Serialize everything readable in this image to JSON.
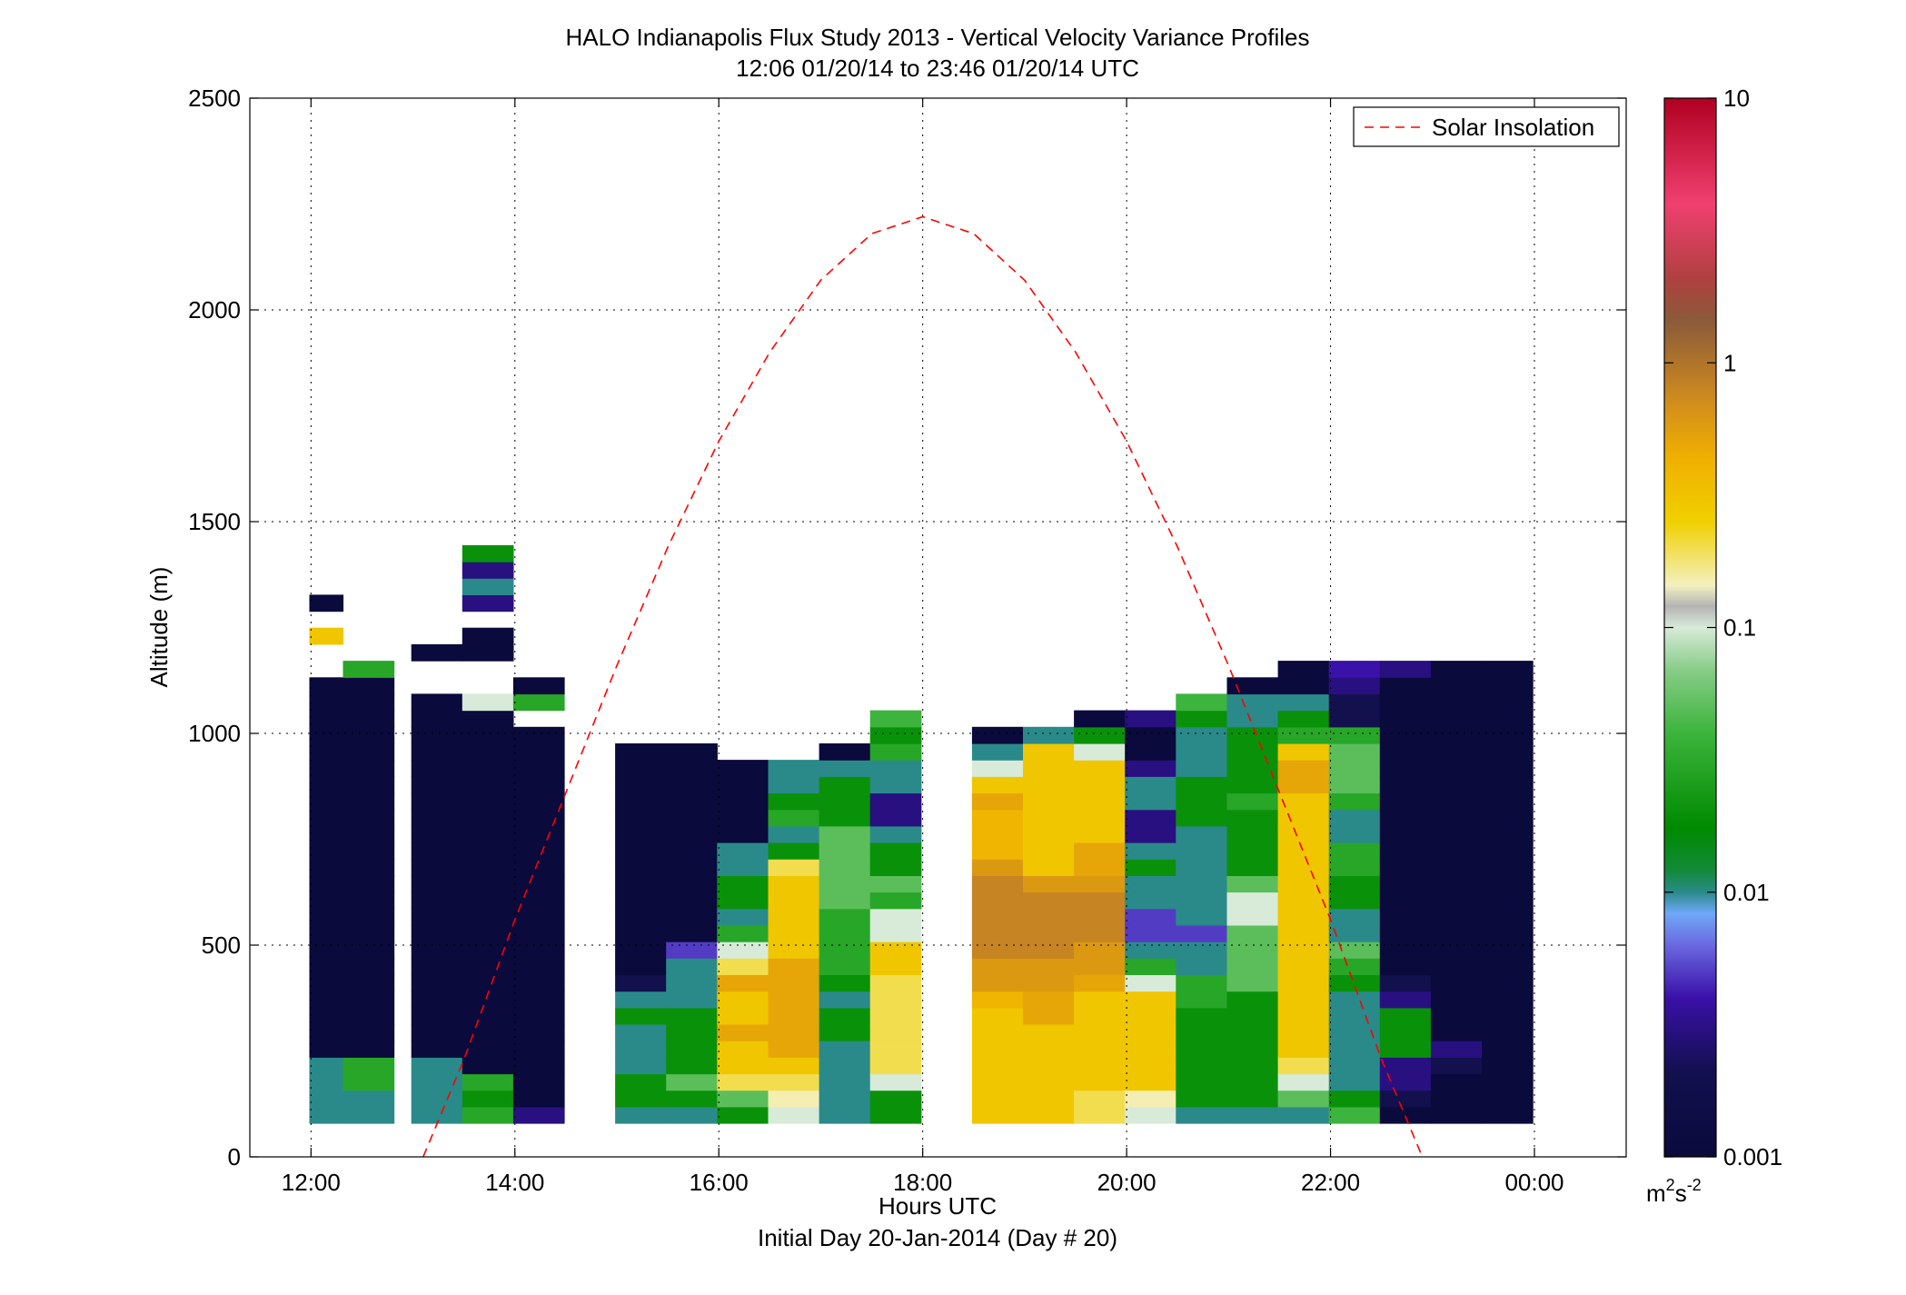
{
  "chart_data": {
    "type": "heatmap",
    "title": "HALO Indianapolis Flux Study 2013 - Vertical Velocity Variance Profiles",
    "subtitle": "12:06 01/20/14 to 23:46 01/20/14  UTC",
    "xlabel": "Hours UTC",
    "xlabel2": "Initial Day 20-Jan-2014 (Day # 20)",
    "ylabel": "Altitude (m)",
    "xlim": [
      11.4,
      24.9
    ],
    "ylim": [
      0,
      2500
    ],
    "x_ticks": [
      12,
      14,
      16,
      18,
      20,
      22,
      24
    ],
    "x_tick_labels": [
      "12:00",
      "14:00",
      "16:00",
      "18:00",
      "20:00",
      "22:00",
      "00:00"
    ],
    "y_ticks": [
      0,
      500,
      1000,
      1500,
      2000,
      2500
    ],
    "y_tick_labels": [
      "0",
      "500",
      "1000",
      "1500",
      "2000",
      "2500"
    ],
    "grid": true,
    "legend": {
      "placement": "top-right",
      "entries": [
        "Solar Insolation"
      ]
    },
    "colorbar": {
      "scale": "log",
      "min": 0.001,
      "max": 10,
      "ticks": [
        0.001,
        0.01,
        0.1,
        1,
        10
      ],
      "tick_labels": [
        "0.001",
        "0.01",
        "0.1",
        "1",
        "10"
      ],
      "unit_label": "m²s⁻²",
      "unit_parts": {
        "base1": "m",
        "sup1": "2",
        "base2": "s",
        "sup2": "-2"
      },
      "stops": [
        {
          "v": 0.0,
          "c": "#0a0a3c"
        },
        {
          "v": 0.08,
          "c": "#12104e"
        },
        {
          "v": 0.15,
          "c": "#3a10a8"
        },
        {
          "v": 0.2,
          "c": "#6a68e0"
        },
        {
          "v": 0.23,
          "c": "#70a8f8"
        },
        {
          "v": 0.25,
          "c": "#2a8a8a"
        },
        {
          "v": 0.27,
          "c": "#128a3a"
        },
        {
          "v": 0.31,
          "c": "#008a00"
        },
        {
          "v": 0.4,
          "c": "#3cb43c"
        },
        {
          "v": 0.46,
          "c": "#88cc88"
        },
        {
          "v": 0.5,
          "c": "#d8ead8"
        },
        {
          "v": 0.52,
          "c": "#b4b4b4"
        },
        {
          "v": 0.54,
          "c": "#f4f0c0"
        },
        {
          "v": 0.6,
          "c": "#f0d000"
        },
        {
          "v": 0.66,
          "c": "#f0b000"
        },
        {
          "v": 0.72,
          "c": "#cc8820"
        },
        {
          "v": 0.79,
          "c": "#8a5a3a"
        },
        {
          "v": 0.83,
          "c": "#b04040"
        },
        {
          "v": 0.9,
          "c": "#f04070"
        },
        {
          "v": 1.0,
          "c": "#b00020"
        }
      ]
    },
    "time_bin_hours": 0.1667,
    "altitude_bin_m": 39,
    "altitude_bin_centers_m": [
      99,
      138,
      177,
      216,
      255,
      294,
      333,
      372,
      411,
      450,
      489,
      528,
      567,
      606,
      645,
      684,
      723,
      762,
      801,
      840,
      879,
      918,
      957,
      996,
      1035,
      1074,
      1113,
      1152,
      1191,
      1230,
      1269,
      1308,
      1347,
      1386,
      1425
    ],
    "profiles": [
      {
        "t": 12.15,
        "variance_m2s2": [
          0.01,
          0.01,
          0.01,
          0.01,
          0.001,
          0.001,
          0.001,
          0.001,
          0.001,
          0.001,
          0.001,
          0.001,
          0.001,
          0.001,
          0.001,
          0.001,
          0.001,
          0.001,
          0.001,
          0.001,
          0.001,
          0.001,
          0.001,
          0.001,
          0.001,
          0.001,
          0.001,
          null,
          null,
          0.3,
          null,
          0.001,
          null,
          null,
          null
        ]
      },
      {
        "t": 12.48,
        "variance_m2s2": [
          0.01,
          0.01,
          0.03,
          0.03,
          0.001,
          0.001,
          0.001,
          0.001,
          0.001,
          0.001,
          0.001,
          0.001,
          0.001,
          0.001,
          0.001,
          0.001,
          0.001,
          0.001,
          0.001,
          0.001,
          0.001,
          0.001,
          0.001,
          0.001,
          0.001,
          0.001,
          0.001,
          0.03,
          null,
          null,
          null,
          null,
          null,
          null,
          null
        ]
      },
      {
        "t": 13.15,
        "variance_m2s2": [
          0.01,
          0.01,
          0.01,
          0.01,
          0.001,
          0.001,
          0.001,
          0.001,
          0.001,
          0.001,
          0.001,
          0.001,
          0.001,
          0.001,
          0.001,
          0.001,
          0.001,
          0.001,
          0.001,
          0.001,
          0.001,
          0.001,
          0.001,
          0.001,
          0.001,
          0.001,
          null,
          null,
          0.001,
          null,
          null,
          null,
          null,
          null,
          null
        ]
      },
      {
        "t": 13.65,
        "variance_m2s2": [
          0.03,
          0.02,
          0.03,
          0.001,
          0.001,
          0.001,
          0.001,
          0.001,
          0.001,
          0.001,
          0.001,
          0.001,
          0.001,
          0.001,
          0.001,
          0.001,
          0.001,
          0.001,
          0.001,
          0.001,
          0.001,
          0.001,
          0.001,
          0.001,
          0.001,
          0.1,
          null,
          null,
          0.001,
          0.001,
          null,
          0.003,
          0.01,
          0.003,
          0.02
        ]
      },
      {
        "t": 14.15,
        "variance_m2s2": [
          0.003,
          0.001,
          0.001,
          0.001,
          0.001,
          0.001,
          0.001,
          0.001,
          0.001,
          0.001,
          0.001,
          0.001,
          0.001,
          0.001,
          0.001,
          0.001,
          0.001,
          0.001,
          0.001,
          0.001,
          0.001,
          0.001,
          0.001,
          0.001,
          null,
          0.03,
          0.001,
          null,
          null,
          null,
          null,
          null,
          null,
          null,
          null
        ]
      },
      {
        "t": 15.15,
        "variance_m2s2": [
          0.01,
          0.02,
          0.02,
          0.01,
          0.01,
          0.01,
          0.02,
          0.01,
          0.002,
          0.001,
          0.001,
          0.001,
          0.001,
          0.001,
          0.001,
          0.001,
          0.001,
          0.001,
          0.001,
          0.001,
          0.001,
          0.001,
          0.001,
          null,
          null,
          null,
          null,
          null,
          null,
          null,
          null,
          null,
          null,
          null,
          null
        ]
      },
      {
        "t": 15.65,
        "variance_m2s2": [
          0.01,
          0.02,
          0.05,
          0.02,
          0.02,
          0.02,
          0.02,
          0.01,
          0.01,
          0.01,
          0.005,
          0.001,
          0.001,
          0.001,
          0.001,
          0.001,
          0.001,
          0.001,
          0.001,
          0.001,
          0.001,
          0.001,
          0.001,
          null,
          null,
          null,
          null,
          null,
          null,
          null,
          null,
          null,
          null,
          null,
          null
        ]
      },
      {
        "t": 16.15,
        "variance_m2s2": [
          0.02,
          0.05,
          0.2,
          0.3,
          0.3,
          0.5,
          0.3,
          0.3,
          0.5,
          0.2,
          0.1,
          0.03,
          0.01,
          0.02,
          0.02,
          0.01,
          0.01,
          0.001,
          0.001,
          0.001,
          0.001,
          0.001,
          null,
          null,
          null,
          null,
          null,
          null,
          null,
          null,
          null,
          null,
          null,
          null,
          null
        ]
      },
      {
        "t": 16.65,
        "variance_m2s2": [
          0.1,
          0.15,
          0.2,
          0.3,
          0.5,
          0.5,
          0.5,
          0.5,
          0.5,
          0.5,
          0.3,
          0.3,
          0.3,
          0.3,
          0.3,
          0.2,
          0.02,
          0.01,
          0.03,
          0.02,
          0.01,
          0.01,
          null,
          null,
          null,
          null,
          null,
          null,
          null,
          null,
          null,
          null,
          null,
          null,
          null
        ]
      },
      {
        "t": 17.15,
        "variance_m2s2": [
          0.01,
          0.01,
          0.01,
          0.01,
          0.01,
          0.02,
          0.02,
          0.01,
          0.02,
          0.03,
          0.03,
          0.03,
          0.03,
          0.05,
          0.05,
          0.05,
          0.05,
          0.05,
          0.02,
          0.02,
          0.02,
          0.01,
          0.001,
          null,
          null,
          null,
          null,
          null,
          null,
          null,
          null,
          null,
          null,
          null,
          null
        ]
      },
      {
        "t": 17.65,
        "variance_m2s2": [
          0.02,
          0.02,
          0.1,
          0.2,
          0.2,
          0.2,
          0.2,
          0.2,
          0.2,
          0.3,
          0.3,
          0.1,
          0.1,
          0.03,
          0.05,
          0.02,
          0.02,
          0.01,
          0.003,
          0.003,
          0.01,
          0.01,
          0.03,
          0.02,
          0.04,
          null,
          null,
          null,
          null,
          null,
          null,
          null,
          null,
          null,
          null
        ]
      },
      {
        "t": 18.65,
        "variance_m2s2": [
          0.3,
          0.3,
          0.3,
          0.3,
          0.3,
          0.3,
          0.3,
          0.4,
          0.6,
          0.6,
          0.8,
          0.8,
          0.8,
          0.8,
          0.8,
          0.6,
          0.4,
          0.4,
          0.4,
          0.5,
          0.3,
          0.1,
          0.01,
          0.001,
          null,
          null,
          null,
          null,
          null,
          null,
          null,
          null,
          null,
          null,
          null
        ]
      },
      {
        "t": 19.15,
        "variance_m2s2": [
          0.3,
          0.3,
          0.3,
          0.3,
          0.3,
          0.3,
          0.5,
          0.5,
          0.6,
          0.6,
          0.8,
          0.8,
          0.8,
          0.8,
          0.6,
          0.3,
          0.3,
          0.3,
          0.3,
          0.3,
          0.3,
          0.3,
          0.3,
          0.01,
          null,
          null,
          null,
          null,
          null,
          null,
          null,
          null,
          null,
          null,
          null
        ]
      },
      {
        "t": 19.65,
        "variance_m2s2": [
          0.2,
          0.2,
          0.3,
          0.3,
          0.3,
          0.3,
          0.3,
          0.3,
          0.5,
          0.6,
          0.6,
          0.8,
          0.8,
          0.8,
          0.6,
          0.5,
          0.5,
          0.3,
          0.3,
          0.3,
          0.3,
          0.3,
          0.1,
          0.02,
          0.001,
          null,
          null,
          null,
          null,
          null,
          null,
          null,
          null,
          null,
          null
        ]
      },
      {
        "t": 20.15,
        "variance_m2s2": [
          0.1,
          0.15,
          0.3,
          0.3,
          0.3,
          0.3,
          0.3,
          0.3,
          0.1,
          0.03,
          0.01,
          0.005,
          0.005,
          0.01,
          0.01,
          0.02,
          0.01,
          0.003,
          0.003,
          0.01,
          0.01,
          0.003,
          0.001,
          0.001,
          0.003,
          null,
          null,
          null,
          null,
          null,
          null,
          null,
          null,
          null,
          null
        ]
      },
      {
        "t": 20.65,
        "variance_m2s2": [
          0.01,
          0.02,
          0.02,
          0.02,
          0.02,
          0.02,
          0.02,
          0.03,
          0.03,
          0.01,
          0.01,
          0.005,
          0.01,
          0.01,
          0.01,
          0.01,
          0.01,
          0.01,
          0.02,
          0.02,
          0.02,
          0.01,
          0.01,
          0.01,
          0.02,
          0.04,
          null,
          null,
          null,
          null,
          null,
          null,
          null,
          null,
          null
        ]
      },
      {
        "t": 21.15,
        "variance_m2s2": [
          0.01,
          0.02,
          0.02,
          0.02,
          0.02,
          0.02,
          0.02,
          0.02,
          0.05,
          0.05,
          0.05,
          0.05,
          0.1,
          0.1,
          0.05,
          0.02,
          0.02,
          0.02,
          0.02,
          0.03,
          0.02,
          0.02,
          0.02,
          0.02,
          0.01,
          0.01,
          0.001,
          null,
          null,
          null,
          null,
          null,
          null,
          null,
          null
        ]
      },
      {
        "t": 21.65,
        "variance_m2s2": [
          0.01,
          0.05,
          0.1,
          0.2,
          0.3,
          0.3,
          0.3,
          0.3,
          0.3,
          0.3,
          0.3,
          0.3,
          0.3,
          0.3,
          0.3,
          0.3,
          0.3,
          0.3,
          0.3,
          0.3,
          0.5,
          0.5,
          0.3,
          0.03,
          0.02,
          0.01,
          0.001,
          0.001,
          null,
          null,
          null,
          null,
          null,
          null,
          null
        ]
      },
      {
        "t": 22.15,
        "variance_m2s2": [
          0.04,
          0.02,
          0.01,
          0.01,
          0.01,
          0.01,
          0.01,
          0.01,
          0.02,
          0.03,
          0.05,
          0.01,
          0.01,
          0.02,
          0.02,
          0.03,
          0.03,
          0.01,
          0.01,
          0.03,
          0.05,
          0.05,
          0.05,
          0.03,
          0.002,
          0.002,
          0.003,
          0.004,
          null,
          null,
          null,
          null,
          null,
          null,
          null
        ]
      },
      {
        "t": 22.65,
        "variance_m2s2": [
          0.001,
          0.002,
          0.003,
          0.003,
          0.02,
          0.02,
          0.02,
          0.003,
          0.002,
          0.001,
          0.001,
          0.001,
          0.001,
          0.001,
          0.001,
          0.001,
          0.001,
          0.001,
          0.001,
          0.001,
          0.001,
          0.001,
          0.001,
          0.001,
          0.001,
          0.001,
          0.001,
          0.003,
          null,
          null,
          null,
          null,
          null,
          null,
          null
        ]
      },
      {
        "t": 23.15,
        "variance_m2s2": [
          0.001,
          0.001,
          0.001,
          0.002,
          0.003,
          0.001,
          0.001,
          0.001,
          0.001,
          0.001,
          0.001,
          0.001,
          0.001,
          0.001,
          0.001,
          0.001,
          0.001,
          0.001,
          0.001,
          0.001,
          0.001,
          0.001,
          0.001,
          0.001,
          0.001,
          0.001,
          0.001,
          0.001,
          null,
          null,
          null,
          null,
          null,
          null,
          null
        ]
      },
      {
        "t": 23.65,
        "variance_m2s2": [
          0.001,
          0.001,
          0.001,
          0.001,
          0.001,
          0.001,
          0.001,
          0.001,
          0.001,
          0.001,
          0.001,
          0.001,
          0.001,
          0.001,
          0.001,
          0.001,
          0.001,
          0.001,
          0.001,
          0.001,
          0.001,
          0.001,
          0.001,
          0.001,
          0.001,
          0.001,
          0.001,
          0.001,
          null,
          null,
          null,
          null,
          null,
          null,
          null
        ]
      }
    ],
    "series": [
      {
        "name": "Solar Insolation",
        "style": "dashed",
        "color": "#ff0000",
        "x": [
          13.1,
          13.5,
          14.0,
          14.5,
          15.0,
          15.5,
          16.0,
          16.5,
          17.0,
          17.5,
          18.0,
          18.5,
          19.0,
          19.5,
          20.0,
          20.5,
          21.0,
          21.5,
          22.0,
          22.5,
          22.9
        ],
        "y": [
          0,
          230,
          560,
          860,
          1160,
          1440,
          1690,
          1900,
          2070,
          2180,
          2220,
          2180,
          2070,
          1900,
          1690,
          1440,
          1160,
          860,
          560,
          230,
          0
        ]
      }
    ]
  }
}
